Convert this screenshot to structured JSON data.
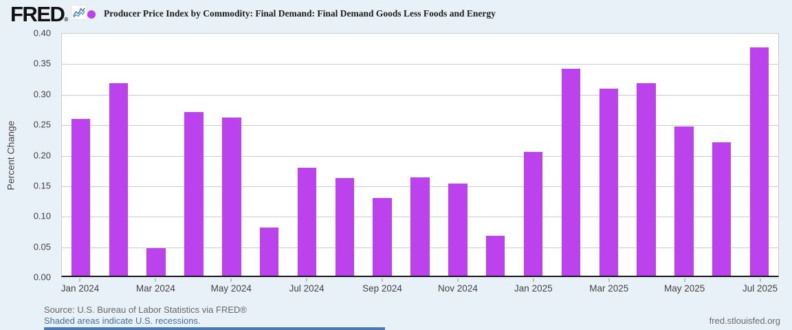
{
  "header": {
    "logo_text": "FRED",
    "logo_mark": "®",
    "series_title": "Producer Price Index by Commodity: Final Demand: Final Demand Goods Less Foods and Energy"
  },
  "colors": {
    "bar": "#bb42ec",
    "legend_dot": "#bb42ec",
    "background": "#e9f1f8",
    "grid": "#cccccc",
    "link_blue": "#44709d",
    "bottom_strip_blue": "#4a79b8",
    "logo_icon_blue": "#4a66d8",
    "logo_icon_green": "#3fae9e"
  },
  "chart_data": {
    "type": "bar",
    "title": "Producer Price Index by Commodity: Final Demand: Final Demand Goods Less Foods and Energy",
    "xlabel": "",
    "ylabel": "Percent Change",
    "ylim": [
      0,
      0.4
    ],
    "grid": true,
    "legend_position": "top-left",
    "categories": [
      "Jan 2024",
      "Feb 2024",
      "Mar 2024",
      "Apr 2024",
      "May 2024",
      "Jun 2024",
      "Jul 2024",
      "Aug 2024",
      "Sep 2024",
      "Oct 2024",
      "Nov 2024",
      "Dec 2024",
      "Jan 2025",
      "Feb 2025",
      "Mar 2025",
      "Apr 2025",
      "May 2025",
      "Jun 2025",
      "Jul 2025"
    ],
    "values": [
      0.259,
      0.318,
      0.046,
      0.27,
      0.261,
      0.079,
      0.178,
      0.161,
      0.128,
      0.163,
      0.152,
      0.066,
      0.205,
      0.342,
      0.309,
      0.318,
      0.247,
      0.22,
      0.377
    ],
    "ytick_labels": [
      "0.40",
      "0.35",
      "0.30",
      "0.25",
      "0.20",
      "0.15",
      "0.10",
      "0.05",
      "0.00"
    ],
    "xtick_labels": [
      "Jan 2024",
      "Mar 2024",
      "May 2024",
      "Jul 2024",
      "Sep 2024",
      "Nov 2024",
      "Jan 2025",
      "Mar 2025",
      "May 2025",
      "Jul 2025"
    ]
  },
  "footer": {
    "source_line": "Source: U.S. Bureau of Labor Statistics via FRED®",
    "recession_note": "Shaded areas indicate U.S. recessions.",
    "site_link": "fred.stlouisfed.org"
  }
}
